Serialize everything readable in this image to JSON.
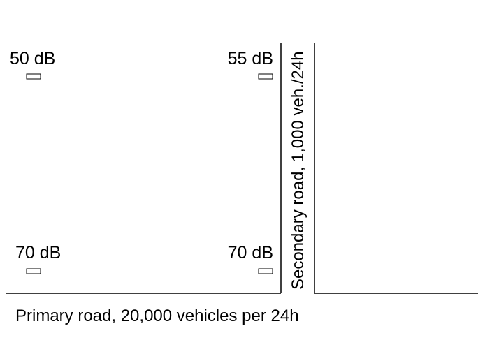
{
  "receivers": [
    {
      "label": "50 dB"
    },
    {
      "label": "55 dB"
    },
    {
      "label": "70 dB"
    },
    {
      "label": "70 dB"
    }
  ],
  "roads": {
    "secondary": "Secondary road, 1,000 veh./24h",
    "primary": "Primary road, 20,000 vehicles per 24h"
  }
}
